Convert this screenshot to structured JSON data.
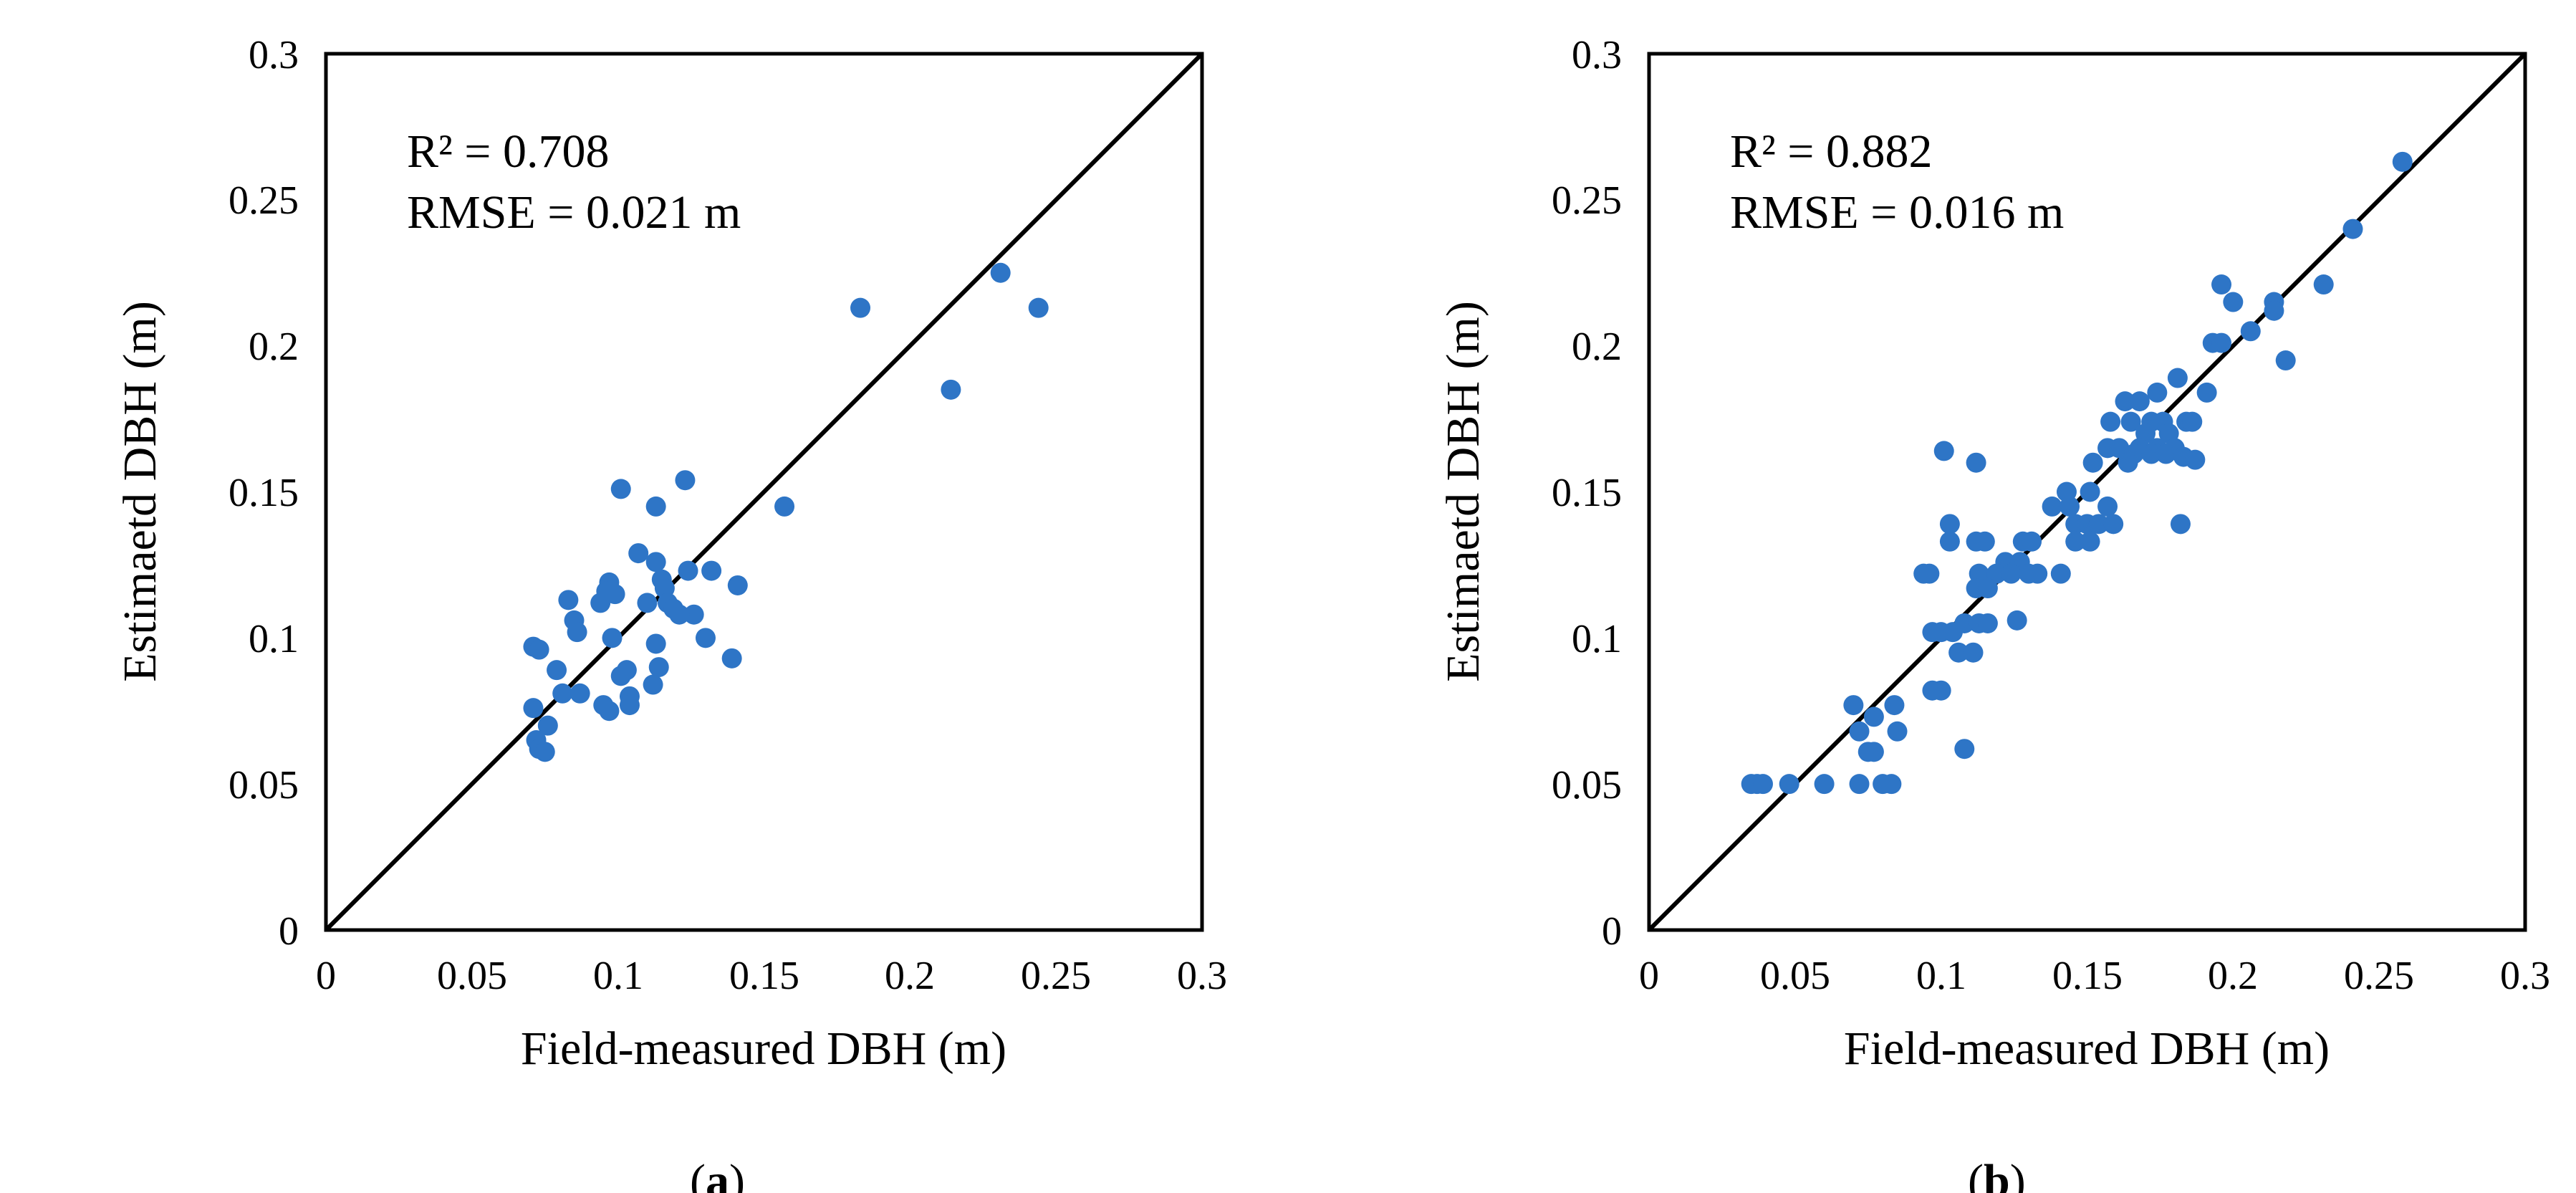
{
  "chart_data": [
    {
      "type": "scatter",
      "panel_label": "a",
      "xlabel": "Field-measured DBH (m)",
      "ylabel": "Estimaetd DBH (m)",
      "xlim": [
        0,
        0.3
      ],
      "ylim": [
        0,
        0.3
      ],
      "xticks": [
        "0",
        "0.05",
        "0.1",
        "0.15",
        "0.2",
        "0.25",
        "0.3"
      ],
      "yticks": [
        "0",
        "0.05",
        "0.1",
        "0.15",
        "0.2",
        "0.25",
        "0.3"
      ],
      "annotations": [
        "R² = 0.708",
        "RMSE = 0.021 m"
      ],
      "reference_line": "1:1",
      "point_color": "#2e75c6",
      "points": [
        [
          0.183,
          0.213
        ],
        [
          0.231,
          0.225
        ],
        [
          0.244,
          0.213
        ],
        [
          0.214,
          0.185
        ],
        [
          0.101,
          0.151
        ],
        [
          0.123,
          0.154
        ],
        [
          0.113,
          0.145
        ],
        [
          0.157,
          0.145
        ],
        [
          0.107,
          0.129
        ],
        [
          0.113,
          0.126
        ],
        [
          0.124,
          0.123
        ],
        [
          0.132,
          0.123
        ],
        [
          0.115,
          0.12
        ],
        [
          0.097,
          0.119
        ],
        [
          0.116,
          0.117
        ],
        [
          0.141,
          0.118
        ],
        [
          0.096,
          0.116
        ],
        [
          0.099,
          0.115
        ],
        [
          0.094,
          0.112
        ],
        [
          0.11,
          0.112
        ],
        [
          0.117,
          0.112
        ],
        [
          0.083,
          0.113
        ],
        [
          0.119,
          0.11
        ],
        [
          0.126,
          0.108
        ],
        [
          0.121,
          0.108
        ],
        [
          0.085,
          0.106
        ],
        [
          0.086,
          0.102
        ],
        [
          0.098,
          0.1
        ],
        [
          0.13,
          0.1
        ],
        [
          0.113,
          0.098
        ],
        [
          0.071,
          0.097
        ],
        [
          0.073,
          0.096
        ],
        [
          0.139,
          0.093
        ],
        [
          0.079,
          0.089
        ],
        [
          0.103,
          0.089
        ],
        [
          0.114,
          0.09
        ],
        [
          0.101,
          0.087
        ],
        [
          0.112,
          0.084
        ],
        [
          0.081,
          0.081
        ],
        [
          0.087,
          0.081
        ],
        [
          0.104,
          0.08
        ],
        [
          0.095,
          0.077
        ],
        [
          0.104,
          0.077
        ],
        [
          0.097,
          0.075
        ],
        [
          0.071,
          0.076
        ],
        [
          0.076,
          0.07
        ],
        [
          0.072,
          0.065
        ],
        [
          0.073,
          0.062
        ],
        [
          0.075,
          0.061
        ]
      ]
    },
    {
      "type": "scatter",
      "panel_label": "b",
      "xlabel": "Field-measured DBH (m)",
      "ylabel": "Estimaetd DBH (m)",
      "xlim": [
        0,
        0.3
      ],
      "ylim": [
        0,
        0.3
      ],
      "xticks": [
        "0",
        "0.05",
        "0.1",
        "0.15",
        "0.2",
        "0.25",
        "0.3"
      ],
      "yticks": [
        "0",
        "0.05",
        "0.1",
        "0.15",
        "0.2",
        "0.25",
        "0.3"
      ],
      "annotations": [
        "R² = 0.882",
        "RMSE = 0.016 m"
      ],
      "reference_line": "1:1",
      "point_color": "#2e75c6",
      "points": [
        [
          0.258,
          0.263
        ],
        [
          0.241,
          0.24
        ],
        [
          0.196,
          0.221
        ],
        [
          0.231,
          0.221
        ],
        [
          0.2,
          0.215
        ],
        [
          0.214,
          0.215
        ],
        [
          0.214,
          0.212
        ],
        [
          0.206,
          0.205
        ],
        [
          0.193,
          0.201
        ],
        [
          0.196,
          0.201
        ],
        [
          0.218,
          0.195
        ],
        [
          0.191,
          0.184
        ],
        [
          0.163,
          0.181
        ],
        [
          0.168,
          0.181
        ],
        [
          0.174,
          0.184
        ],
        [
          0.181,
          0.189
        ],
        [
          0.158,
          0.174
        ],
        [
          0.165,
          0.174
        ],
        [
          0.172,
          0.174
        ],
        [
          0.176,
          0.174
        ],
        [
          0.184,
          0.174
        ],
        [
          0.186,
          0.174
        ],
        [
          0.17,
          0.17
        ],
        [
          0.178,
          0.17
        ],
        [
          0.157,
          0.165
        ],
        [
          0.161,
          0.165
        ],
        [
          0.168,
          0.165
        ],
        [
          0.174,
          0.165
        ],
        [
          0.18,
          0.165
        ],
        [
          0.166,
          0.163
        ],
        [
          0.172,
          0.163
        ],
        [
          0.177,
          0.163
        ],
        [
          0.183,
          0.162
        ],
        [
          0.187,
          0.161
        ],
        [
          0.112,
          0.16
        ],
        [
          0.101,
          0.164
        ],
        [
          0.152,
          0.16
        ],
        [
          0.164,
          0.16
        ],
        [
          0.143,
          0.15
        ],
        [
          0.151,
          0.15
        ],
        [
          0.138,
          0.145
        ],
        [
          0.144,
          0.145
        ],
        [
          0.157,
          0.145
        ],
        [
          0.103,
          0.139
        ],
        [
          0.146,
          0.139
        ],
        [
          0.15,
          0.139
        ],
        [
          0.154,
          0.139
        ],
        [
          0.159,
          0.139
        ],
        [
          0.182,
          0.139
        ],
        [
          0.103,
          0.133
        ],
        [
          0.112,
          0.133
        ],
        [
          0.115,
          0.133
        ],
        [
          0.128,
          0.133
        ],
        [
          0.131,
          0.133
        ],
        [
          0.146,
          0.133
        ],
        [
          0.151,
          0.133
        ],
        [
          0.122,
          0.126
        ],
        [
          0.127,
          0.126
        ],
        [
          0.094,
          0.122
        ],
        [
          0.096,
          0.122
        ],
        [
          0.113,
          0.122
        ],
        [
          0.119,
          0.122
        ],
        [
          0.124,
          0.122
        ],
        [
          0.13,
          0.122
        ],
        [
          0.133,
          0.122
        ],
        [
          0.141,
          0.122
        ],
        [
          0.112,
          0.117
        ],
        [
          0.116,
          0.117
        ],
        [
          0.108,
          0.105
        ],
        [
          0.113,
          0.105
        ],
        [
          0.116,
          0.105
        ],
        [
          0.126,
          0.106
        ],
        [
          0.097,
          0.102
        ],
        [
          0.1,
          0.102
        ],
        [
          0.104,
          0.102
        ],
        [
          0.106,
          0.095
        ],
        [
          0.111,
          0.095
        ],
        [
          0.097,
          0.082
        ],
        [
          0.1,
          0.082
        ],
        [
          0.084,
          0.077
        ],
        [
          0.07,
          0.077
        ],
        [
          0.077,
          0.073
        ],
        [
          0.072,
          0.068
        ],
        [
          0.085,
          0.068
        ],
        [
          0.075,
          0.061
        ],
        [
          0.077,
          0.061
        ],
        [
          0.108,
          0.062
        ],
        [
          0.035,
          0.05
        ],
        [
          0.037,
          0.05
        ],
        [
          0.039,
          0.05
        ],
        [
          0.048,
          0.05
        ],
        [
          0.06,
          0.05
        ],
        [
          0.072,
          0.05
        ],
        [
          0.08,
          0.05
        ],
        [
          0.083,
          0.05
        ]
      ]
    }
  ]
}
